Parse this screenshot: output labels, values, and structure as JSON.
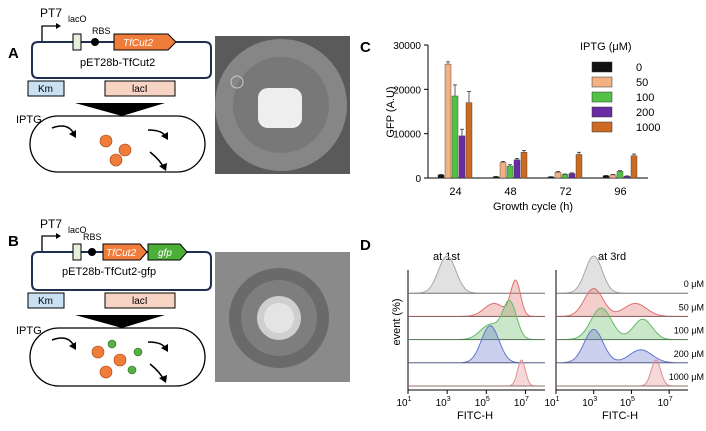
{
  "panel_labels": {
    "a": "A",
    "b": "B",
    "c": "C",
    "d": "D"
  },
  "construct_a": {
    "promoter": "PT7",
    "operator": "lacO",
    "rbs": "RBS",
    "gene": "TfCut2",
    "plasmid": "pET28b-TfCut2",
    "marker1": "Km",
    "marker2": "lacI",
    "inducer": "IPTG"
  },
  "construct_b": {
    "promoter": "PT7",
    "operator": "lacO",
    "rbs": "RBS",
    "gene": "TfCut2",
    "gene2": "gfp",
    "plasmid": "pET28b-TfCut2-gfp",
    "marker1": "Km",
    "marker2": "lacI",
    "inducer": "IPTG"
  },
  "colors": {
    "orange_gene": "#f07c3a",
    "green_gene": "#4caf3a",
    "km_box": "#c9e1f2",
    "laci_box": "#f6d3c2",
    "plasmid_line": "#1f2f4f",
    "cell_orange": "#f07c3a",
    "cell_green": "#55b043"
  },
  "chart_data": [
    {
      "type": "bar",
      "categories": [
        "24",
        "48",
        "72",
        "96"
      ],
      "series": [
        {
          "name": "0",
          "color": "#111111",
          "values": [
            700,
            300,
            250,
            500
          ]
        },
        {
          "name": "50",
          "color": "#f3b080",
          "values": [
            25700,
            3500,
            1300,
            700
          ]
        },
        {
          "name": "100",
          "color": "#52c247",
          "values": [
            18500,
            2700,
            800,
            1500
          ]
        },
        {
          "name": "200",
          "color": "#6a2aa3",
          "values": [
            9500,
            4100,
            1000,
            400
          ]
        },
        {
          "name": "1000",
          "color": "#cc6a22",
          "values": [
            17000,
            5800,
            5300,
            5000
          ]
        }
      ],
      "errors": [
        [
          100,
          50,
          50,
          80
        ],
        [
          500,
          250,
          150,
          100
        ],
        [
          2500,
          300,
          100,
          150
        ],
        [
          1500,
          300,
          150,
          80
        ],
        [
          2500,
          400,
          500,
          400
        ]
      ],
      "ylim": [
        0,
        30000
      ],
      "yticks": [
        "0",
        "10000",
        "20000",
        "30000"
      ],
      "ylabel": "GFP (A.U)",
      "xlabel": "Growth cycle (h)",
      "legend_title": "IPTG (μM)",
      "legend_position": "right"
    },
    {
      "type": "area",
      "xlabel": "FITC-H",
      "ylabel": "event  (%)",
      "xticks": [
        "10",
        "10",
        "10",
        "10"
      ],
      "xtick_exponents": [
        "1",
        "3",
        "5",
        "7"
      ],
      "xlim_log10": [
        1,
        8
      ],
      "panels": [
        {
          "title": "at  1st"
        },
        {
          "title": "at 3rd"
        }
      ],
      "series": [
        {
          "name": "0 μM",
          "color": "#a8a8a8"
        },
        {
          "name": "50 μM",
          "color": "#e07070"
        },
        {
          "name": "100 μM",
          "color": "#66bb66"
        },
        {
          "name": "200 μM",
          "color": "#6677cc"
        },
        {
          "name": "1000 μM",
          "color": "#e29090"
        }
      ]
    }
  ]
}
